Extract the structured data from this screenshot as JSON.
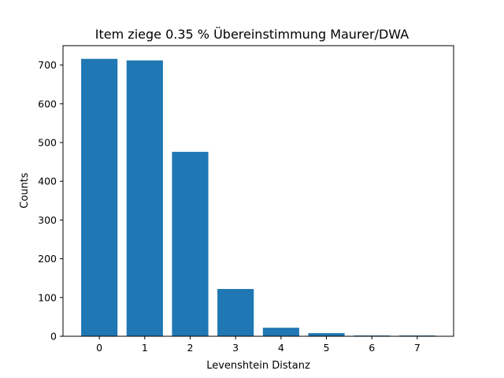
{
  "chart_data": {
    "type": "bar",
    "title": "Item ziege  0.35 % Übereinstimmung Maurer/DWA",
    "xlabel": "Levenshtein Distanz",
    "ylabel": "Counts",
    "categories": [
      "0",
      "1",
      "2",
      "3",
      "4",
      "5",
      "6",
      "7"
    ],
    "values": [
      716,
      712,
      476,
      122,
      22,
      8,
      2,
      2
    ],
    "ylim": [
      0,
      750
    ],
    "yticks": [
      "0",
      "100",
      "200",
      "300",
      "400",
      "500",
      "600",
      "700"
    ],
    "grid": false,
    "bar_color": "#1f77b4"
  }
}
